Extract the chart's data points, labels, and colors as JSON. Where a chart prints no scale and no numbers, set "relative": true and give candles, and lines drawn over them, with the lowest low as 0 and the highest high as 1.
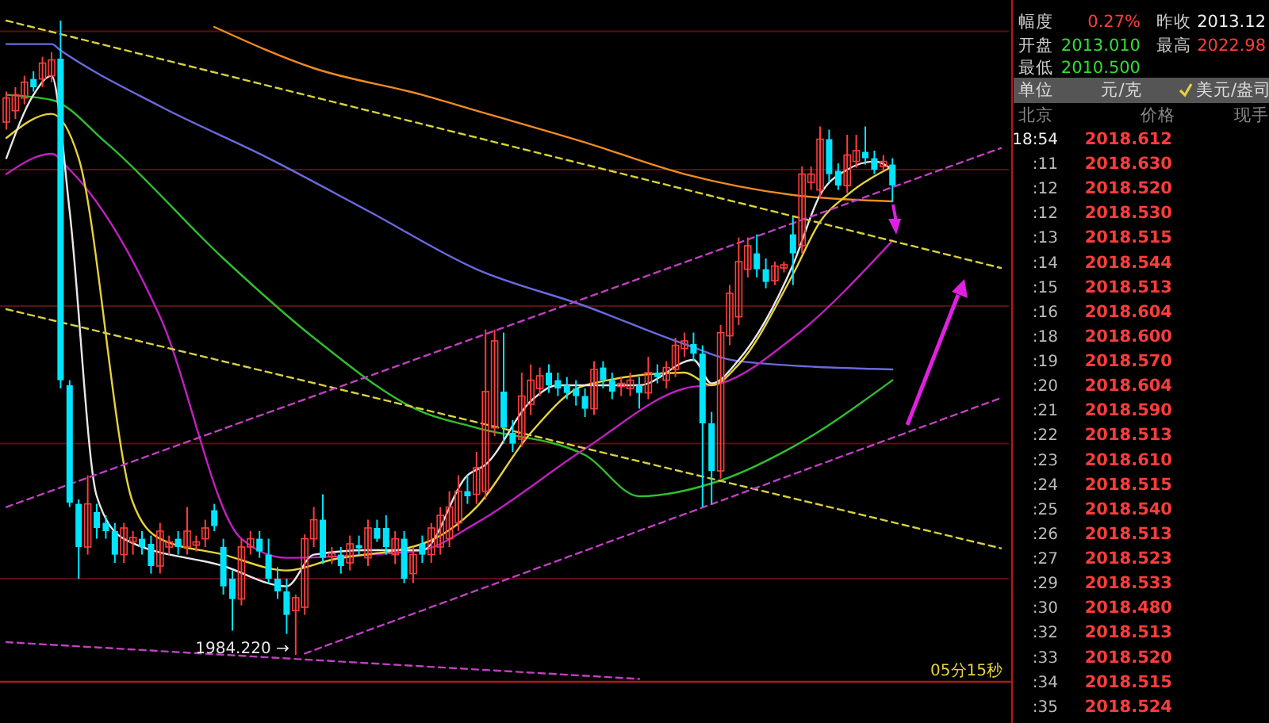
{
  "chart_data": [
    {
      "type": "candlestick",
      "relative": true,
      "ref_lines": [
        {
          "axis": "y",
          "value": 0.983,
          "color": "#5a0f0f"
        },
        {
          "axis": "y",
          "value": 0.765,
          "color": "#5a0f0f"
        },
        {
          "axis": "y",
          "value": 0.55,
          "color": "#5a0f0f"
        },
        {
          "axis": "y",
          "value": 0.333,
          "color": "#5a0f0f"
        },
        {
          "axis": "y",
          "value": 0.12,
          "color": "#5a0f0f"
        }
      ],
      "categories": [
        null,
        null,
        null,
        null,
        null,
        null,
        null,
        null,
        null,
        null,
        null,
        null,
        null,
        null,
        null,
        null,
        null,
        null,
        null,
        null,
        null,
        null,
        null,
        null,
        null,
        null,
        null,
        null,
        null,
        null,
        null,
        null,
        null,
        null,
        null,
        null,
        null,
        null,
        null,
        null,
        null,
        null,
        null,
        null,
        null,
        null,
        null,
        null,
        null,
        null,
        null,
        null,
        null,
        null,
        null,
        null,
        null,
        null,
        null,
        null,
        null,
        null,
        null,
        null,
        null,
        null,
        null,
        null,
        null,
        null,
        null,
        null,
        null,
        null,
        null,
        null,
        null,
        null,
        null,
        null,
        null,
        null,
        null,
        null,
        null,
        null,
        null,
        null,
        null,
        null,
        null,
        null,
        null,
        null,
        null,
        null,
        null,
        null,
        null,
        null,
        null,
        null,
        null,
        null,
        null,
        null,
        null,
        null,
        null,
        null,
        null
      ],
      "ohlc": [
        [
          0.84,
          0.888,
          0.828,
          0.878
        ],
        [
          0.858,
          0.895,
          0.845,
          0.883
        ],
        [
          0.878,
          0.913,
          0.868,
          0.903
        ],
        [
          0.908,
          0.92,
          0.888,
          0.895
        ],
        [
          0.908,
          0.943,
          0.895,
          0.933
        ],
        [
          0.913,
          0.95,
          0.903,
          0.938
        ],
        [
          0.94,
          1.0,
          0.42,
          0.433
        ],
        [
          0.425,
          0.433,
          0.233,
          0.24
        ],
        [
          0.238,
          0.245,
          0.12,
          0.17
        ],
        [
          0.17,
          0.283,
          0.158,
          0.238
        ],
        [
          0.225,
          0.238,
          0.183,
          0.2
        ],
        [
          0.208,
          0.22,
          0.183,
          0.195
        ],
        [
          0.195,
          0.208,
          0.145,
          0.158
        ],
        [
          0.158,
          0.208,
          0.145,
          0.2
        ],
        [
          0.178,
          0.195,
          0.158,
          0.185
        ],
        [
          0.183,
          0.195,
          0.158,
          0.17
        ],
        [
          0.175,
          0.188,
          0.128,
          0.14
        ],
        [
          0.14,
          0.208,
          0.128,
          0.195
        ],
        [
          0.17,
          0.188,
          0.158,
          0.178
        ],
        [
          0.183,
          0.195,
          0.158,
          0.17
        ],
        [
          0.17,
          0.233,
          0.158,
          0.195
        ],
        [
          0.173,
          0.188,
          0.163,
          0.178
        ],
        [
          0.183,
          0.213,
          0.17,
          0.2
        ],
        [
          0.228,
          0.238,
          0.195,
          0.203
        ],
        [
          0.17,
          0.183,
          0.095,
          0.108
        ],
        [
          0.12,
          0.133,
          0.038,
          0.088
        ],
        [
          0.088,
          0.183,
          0.078,
          0.17
        ],
        [
          0.17,
          0.195,
          0.158,
          0.183
        ],
        [
          0.183,
          0.195,
          0.153,
          0.163
        ],
        [
          0.158,
          0.183,
          0.113,
          0.12
        ],
        [
          0.12,
          0.138,
          0.088,
          0.1
        ],
        [
          0.1,
          0.12,
          0.033,
          0.063
        ],
        [
          0.07,
          0.095,
          0.0,
          0.09
        ],
        [
          0.075,
          0.19,
          0.063,
          0.183
        ],
        [
          0.183,
          0.233,
          0.17,
          0.213
        ],
        [
          0.213,
          0.253,
          0.143,
          0.153
        ],
        [
          0.155,
          0.17,
          0.143,
          0.16
        ],
        [
          0.158,
          0.17,
          0.128,
          0.14
        ],
        [
          0.145,
          0.188,
          0.133,
          0.175
        ],
        [
          0.173,
          0.188,
          0.158,
          0.168
        ],
        [
          0.153,
          0.213,
          0.14,
          0.2
        ],
        [
          0.2,
          0.213,
          0.178,
          0.183
        ],
        [
          0.2,
          0.22,
          0.158,
          0.17
        ],
        [
          0.158,
          0.195,
          0.143,
          0.183
        ],
        [
          0.183,
          0.195,
          0.113,
          0.12
        ],
        [
          0.128,
          0.17,
          0.113,
          0.158
        ],
        [
          0.175,
          0.188,
          0.145,
          0.158
        ],
        [
          0.158,
          0.208,
          0.145,
          0.2
        ],
        [
          0.17,
          0.233,
          0.158,
          0.22
        ],
        [
          0.183,
          0.258,
          0.17,
          0.233
        ],
        [
          0.208,
          0.283,
          0.195,
          0.258
        ],
        [
          0.258,
          0.283,
          0.238,
          0.25
        ],
        [
          0.253,
          0.32,
          0.238,
          0.295
        ],
        [
          0.258,
          0.513,
          0.245,
          0.415
        ],
        [
          0.358,
          0.513,
          0.345,
          0.495
        ],
        [
          0.415,
          0.508,
          0.333,
          0.358
        ],
        [
          0.35,
          0.37,
          0.32,
          0.333
        ],
        [
          0.34,
          0.445,
          0.328,
          0.408
        ],
        [
          0.395,
          0.458,
          0.378,
          0.433
        ],
        [
          0.42,
          0.453,
          0.408,
          0.44
        ],
        [
          0.445,
          0.458,
          0.413,
          0.425
        ],
        [
          0.433,
          0.445,
          0.408,
          0.42
        ],
        [
          0.425,
          0.438,
          0.403,
          0.413
        ],
        [
          0.42,
          0.433,
          0.393,
          0.408
        ],
        [
          0.408,
          0.42,
          0.375,
          0.388
        ],
        [
          0.388,
          0.463,
          0.378,
          0.45
        ],
        [
          0.453,
          0.463,
          0.42,
          0.433
        ],
        [
          0.433,
          0.445,
          0.403,
          0.415
        ],
        [
          0.423,
          0.438,
          0.408,
          0.428
        ],
        [
          0.42,
          0.445,
          0.408,
          0.433
        ],
        [
          0.425,
          0.438,
          0.388,
          0.413
        ],
        [
          0.413,
          0.47,
          0.403,
          0.445
        ],
        [
          0.445,
          0.458,
          0.428,
          0.438
        ],
        [
          0.433,
          0.463,
          0.42,
          0.453
        ],
        [
          0.45,
          0.5,
          0.438,
          0.488
        ],
        [
          0.483,
          0.508,
          0.47,
          0.495
        ],
        [
          0.49,
          0.508,
          0.463,
          0.475
        ],
        [
          0.475,
          0.488,
          0.233,
          0.365
        ],
        [
          0.365,
          0.383,
          0.238,
          0.29
        ],
        [
          0.29,
          0.52,
          0.278,
          0.508
        ],
        [
          0.503,
          0.583,
          0.488,
          0.57
        ],
        [
          0.533,
          0.658,
          0.52,
          0.62
        ],
        [
          0.608,
          0.658,
          0.595,
          0.645
        ],
        [
          0.633,
          0.663,
          0.595,
          0.608
        ],
        [
          0.608,
          0.625,
          0.578,
          0.588
        ],
        [
          0.59,
          0.62,
          0.583,
          0.613
        ],
        [
          0.61,
          0.62,
          0.603,
          0.615
        ],
        [
          0.663,
          0.69,
          0.583,
          0.633
        ],
        [
          0.645,
          0.77,
          0.633,
          0.758
        ],
        [
          0.745,
          0.77,
          0.733,
          0.758
        ],
        [
          0.733,
          0.833,
          0.72,
          0.813
        ],
        [
          0.813,
          0.828,
          0.745,
          0.758
        ],
        [
          0.763,
          0.775,
          0.733,
          0.74
        ],
        [
          0.74,
          0.82,
          0.728,
          0.788
        ],
        [
          0.778,
          0.82,
          0.768,
          0.795
        ],
        [
          0.793,
          0.833,
          0.773,
          0.783
        ],
        [
          0.783,
          0.795,
          0.758,
          0.765
        ],
        [
          0.77,
          0.788,
          0.763,
          0.778
        ],
        [
          0.773,
          0.783,
          0.715,
          0.74
        ],
        null,
        null,
        null,
        null,
        null,
        null,
        null,
        null,
        null,
        null,
        null,
        null
      ],
      "colors": [
        "#ff3c3c",
        "#ff3c3c",
        "#ff3c3c",
        "#00e5ff",
        "#ff3c3c",
        "#ff3c3c",
        "#00e5ff",
        "#00e5ff",
        "#00e5ff",
        "#ff3c3c",
        "#00e5ff",
        "#00e5ff",
        "#00e5ff",
        "#ff3c3c",
        "#ff3c3c",
        "#00e5ff",
        "#00e5ff",
        "#ff3c3c",
        "#ff3c3c",
        "#00e5ff",
        "#ff3c3c",
        "#ff3c3c",
        "#ff3c3c",
        "#00e5ff",
        "#00e5ff",
        "#00e5ff",
        "#ff3c3c",
        "#ff3c3c",
        "#00e5ff",
        "#00e5ff",
        "#00e5ff",
        "#00e5ff",
        "#ff3c3c",
        "#ff3c3c",
        "#ff3c3c",
        "#00e5ff",
        "#ff3c3c",
        "#00e5ff",
        "#ff3c3c",
        "#00e5ff",
        "#ff3c3c",
        "#00e5ff",
        "#00e5ff",
        "#ff3c3c",
        "#00e5ff",
        "#ff3c3c",
        "#00e5ff",
        "#ff3c3c",
        "#ff3c3c",
        "#ff3c3c",
        "#ff3c3c",
        "#00e5ff",
        "#ff3c3c",
        "#ff3c3c",
        "#ff3c3c",
        "#00e5ff",
        "#00e5ff",
        "#ff3c3c",
        "#ff3c3c",
        "#ff3c3c",
        "#00e5ff",
        "#00e5ff",
        "#00e5ff",
        "#00e5ff",
        "#00e5ff",
        "#ff3c3c",
        "#00e5ff",
        "#00e5ff",
        "#ff3c3c",
        "#ff3c3c",
        "#00e5ff",
        "#ff3c3c",
        "#00e5ff",
        "#ff3c3c",
        "#ff3c3c",
        "#ff3c3c",
        "#00e5ff",
        "#00e5ff",
        "#00e5ff",
        "#ff3c3c",
        "#ff3c3c",
        "#ff3c3c",
        "#ff3c3c",
        "#00e5ff",
        "#00e5ff",
        "#ff3c3c",
        "#ff3c3c",
        "#00e5ff",
        "#ff3c3c",
        "#ff3c3c",
        "#ff3c3c",
        "#00e5ff",
        "#00e5ff",
        "#ff3c3c",
        "#ff3c3c",
        "#00e5ff",
        "#00e5ff",
        "#ff3c3c",
        "#00e5ff",
        null,
        null,
        null,
        null,
        null,
        null,
        null,
        null,
        null,
        null,
        null,
        null
      ],
      "series": [
        {
          "type": "line",
          "color": "#f08a24",
          "values": [
            null,
            null,
            null,
            null,
            null,
            null,
            null,
            null,
            null,
            null,
            null,
            null,
            null,
            null,
            null,
            null,
            null,
            null,
            null,
            null,
            null,
            null,
            null,
            0.99,
            null,
            null,
            null,
            null,
            null,
            null,
            null,
            null,
            null,
            null,
            0.925,
            null,
            null,
            null,
            null,
            null,
            null,
            null,
            null,
            null,
            null,
            null,
            0.883,
            null,
            null,
            null,
            null,
            null,
            0.858,
            null,
            null,
            null,
            null,
            null,
            null,
            null,
            null,
            null,
            null,
            null,
            0.808,
            null,
            null,
            null,
            null,
            null,
            null,
            null,
            null,
            null,
            null,
            0.758,
            null,
            null,
            null,
            null,
            null,
            null,
            null,
            null,
            null,
            null,
            null,
            0.725,
            null,
            null,
            null,
            null,
            null,
            null,
            null,
            null,
            null,
            null,
            0.715,
            null,
            null,
            null,
            null,
            null,
            null,
            null,
            null,
            null,
            null,
            null,
            null
          ]
        },
        {
          "type": "line",
          "color": "#6a6adf",
          "values": [
            0.963,
            null,
            null,
            null,
            null,
            0.963,
            0.953,
            null,
            null,
            null,
            null,
            null,
            null,
            null,
            null,
            null,
            null,
            0.865,
            null,
            null,
            null,
            null,
            null,
            null,
            null,
            null,
            null,
            null,
            null,
            0.783,
            null,
            null,
            null,
            null,
            null,
            null,
            null,
            null,
            null,
            null,
            0.7,
            null,
            null,
            null,
            null,
            null,
            null,
            null,
            null,
            null,
            null,
            null,
            0.608,
            null,
            null,
            null,
            null,
            null,
            null,
            null,
            null,
            null,
            null,
            null,
            0.55,
            null,
            null,
            null,
            null,
            null,
            null,
            null,
            null,
            null,
            null,
            0.49,
            null,
            null,
            null,
            null,
            null,
            0.463,
            null,
            null,
            null,
            null,
            null,
            null,
            null,
            null,
            null,
            null,
            null,
            null,
            null,
            null,
            null,
            null,
            0.45,
            null,
            null,
            null,
            null,
            null,
            null,
            null,
            null,
            null,
            null,
            null,
            null
          ]
        },
        {
          "type": "line",
          "color": "#2fbf2f",
          "values": [
            0.883,
            null,
            null,
            null,
            null,
            0.875,
            null,
            null,
            null,
            null,
            null,
            0.808,
            null,
            null,
            null,
            null,
            null,
            null,
            null,
            null,
            null,
            null,
            null,
            null,
            0.625,
            null,
            null,
            null,
            null,
            null,
            null,
            null,
            null,
            null,
            0.5,
            null,
            null,
            null,
            null,
            null,
            null,
            null,
            null,
            null,
            null,
            null,
            0.383,
            null,
            null,
            null,
            null,
            null,
            0.358,
            null,
            null,
            null,
            null,
            null,
            null,
            null,
            null,
            null,
            null,
            null,
            0.315,
            null,
            null,
            null,
            null,
            null,
            0.25,
            null,
            null,
            null,
            null,
            null,
            null,
            null,
            null,
            0.275,
            null,
            null,
            null,
            null,
            null,
            null,
            null,
            0.328,
            null,
            null,
            null,
            null,
            null,
            null,
            null,
            null,
            null,
            null,
            0.433,
            null,
            null,
            null,
            null,
            null,
            null,
            null,
            null,
            null,
            null,
            null,
            null
          ]
        },
        {
          "type": "line",
          "color": "#c020c0",
          "values": [
            0.758,
            null,
            null,
            null,
            null,
            0.79,
            null,
            0.765,
            null,
            null,
            null,
            null,
            null,
            null,
            null,
            null,
            null,
            0.533,
            null,
            null,
            null,
            null,
            null,
            null,
            null,
            null,
            0.183,
            null,
            null,
            null,
            null,
            0.153,
            null,
            null,
            null,
            null,
            null,
            null,
            null,
            null,
            0.158,
            null,
            null,
            null,
            null,
            null,
            0.165,
            null,
            null,
            null,
            null,
            null,
            0.208,
            null,
            null,
            null,
            null,
            null,
            null,
            null,
            null,
            null,
            null,
            null,
            0.325,
            null,
            null,
            null,
            null,
            null,
            null,
            null,
            null,
            null,
            null,
            0.42,
            null,
            null,
            null,
            0.428,
            null,
            null,
            null,
            null,
            null,
            null,
            null,
            0.5,
            null,
            null,
            null,
            null,
            null,
            null,
            null,
            null,
            null,
            null,
            0.653,
            null,
            null,
            null,
            null,
            null,
            null,
            null,
            null,
            null,
            null,
            null,
            null
          ]
        },
        {
          "type": "line",
          "color": "#e6d23c",
          "values": [
            0.815,
            null,
            null,
            null,
            null,
            0.853,
            null,
            null,
            0.783,
            null,
            null,
            null,
            null,
            null,
            0.24,
            null,
            null,
            0.183,
            null,
            null,
            null,
            null,
            null,
            null,
            0.158,
            null,
            null,
            null,
            null,
            null,
            null,
            0.133,
            null,
            null,
            null,
            null,
            0.15,
            null,
            null,
            null,
            null,
            null,
            null,
            null,
            null,
            null,
            0.175,
            null,
            null,
            null,
            null,
            null,
            0.233,
            null,
            null,
            null,
            null,
            null,
            0.35,
            null,
            null,
            null,
            null,
            null,
            0.425,
            null,
            null,
            null,
            null,
            null,
            null,
            null,
            null,
            null,
            null,
            0.445,
            null,
            null,
            0.425,
            null,
            null,
            0.458,
            null,
            null,
            null,
            null,
            null,
            0.6,
            null,
            null,
            0.683,
            null,
            null,
            0.725,
            null,
            null,
            null,
            null,
            0.77,
            null,
            null,
            null,
            null,
            null,
            null,
            null,
            null,
            null,
            null,
            null,
            null
          ]
        },
        {
          "type": "line",
          "color": "#e8e8e8",
          "values": [
            0.783,
            null,
            null,
            0.883,
            null,
            0.913,
            null,
            0.7,
            null,
            null,
            0.25,
            null,
            null,
            0.183,
            null,
            null,
            null,
            null,
            null,
            null,
            null,
            null,
            null,
            null,
            0.14,
            null,
            null,
            null,
            null,
            null,
            null,
            0.108,
            null,
            null,
            0.158,
            null,
            null,
            null,
            null,
            null,
            0.165,
            null,
            null,
            null,
            null,
            null,
            0.165,
            null,
            null,
            null,
            null,
            0.283,
            null,
            0.3,
            null,
            null,
            null,
            null,
            0.4,
            null,
            null,
            0.425,
            null,
            null,
            null,
            null,
            null,
            null,
            null,
            null,
            0.425,
            null,
            null,
            null,
            null,
            null,
            0.465,
            null,
            0.428,
            null,
            null,
            0.465,
            null,
            null,
            null,
            null,
            null,
            0.615,
            null,
            null,
            0.725,
            null,
            null,
            0.765,
            null,
            null,
            0.778,
            null,
            0.765,
            null,
            null,
            null,
            null,
            null,
            null,
            null,
            null,
            null,
            null,
            null,
            null
          ]
        },
        {
          "type": "line",
          "color": "#d8d040",
          "line_style": "dashed",
          "values": [
            1.0,
            null,
            null,
            null,
            null,
            null,
            null,
            null,
            null,
            null,
            null,
            null,
            null,
            null,
            null,
            null,
            null,
            null,
            null,
            null,
            null,
            null,
            null,
            null,
            null,
            null,
            null,
            null,
            null,
            null,
            null,
            null,
            null,
            null,
            null,
            null,
            null,
            null,
            null,
            null,
            null,
            null,
            null,
            null,
            null,
            null,
            null,
            null,
            null,
            null,
            null,
            null,
            null,
            null,
            null,
            null,
            null,
            null,
            null,
            null,
            null,
            null,
            null,
            null,
            null,
            null,
            null,
            null,
            null,
            null,
            null,
            null,
            null,
            null,
            null,
            null,
            null,
            null,
            null,
            null,
            null,
            null,
            null,
            null,
            null,
            null,
            null,
            null,
            null,
            null,
            null,
            null,
            null,
            null,
            null,
            null,
            null,
            null,
            null,
            null,
            null,
            null,
            null,
            null,
            null,
            null,
            null,
            null,
            null,
            null,
            0.61
          ]
        },
        {
          "type": "line",
          "color": "#d8d040",
          "line_style": "dashed",
          "values": [
            0.545,
            null,
            null,
            null,
            null,
            null,
            null,
            null,
            null,
            null,
            null,
            null,
            null,
            null,
            null,
            null,
            null,
            null,
            null,
            null,
            null,
            null,
            null,
            null,
            null,
            null,
            null,
            null,
            null,
            null,
            null,
            null,
            null,
            null,
            null,
            null,
            null,
            null,
            null,
            null,
            null,
            null,
            null,
            null,
            null,
            null,
            null,
            null,
            null,
            null,
            null,
            null,
            null,
            null,
            null,
            null,
            null,
            null,
            null,
            null,
            null,
            null,
            null,
            null,
            null,
            null,
            null,
            null,
            null,
            null,
            null,
            null,
            null,
            null,
            null,
            null,
            null,
            null,
            null,
            null,
            null,
            null,
            null,
            null,
            null,
            null,
            null,
            null,
            null,
            null,
            null,
            null,
            null,
            null,
            null,
            null,
            null,
            null,
            null,
            null,
            null,
            null,
            null,
            null,
            null,
            null,
            null,
            null,
            null,
            null,
            0.168
          ]
        },
        {
          "type": "line",
          "color": "#c040c0",
          "line_style": "dashed",
          "values": [
            0.233,
            null,
            null,
            null,
            null,
            null,
            null,
            null,
            null,
            null,
            null,
            null,
            null,
            null,
            null,
            null,
            null,
            null,
            null,
            null,
            null,
            null,
            null,
            null,
            null,
            null,
            null,
            null,
            null,
            null,
            null,
            null,
            null,
            null,
            null,
            null,
            null,
            null,
            null,
            null,
            null,
            null,
            null,
            null,
            null,
            null,
            null,
            null,
            null,
            null,
            null,
            null,
            null,
            null,
            null,
            null,
            null,
            null,
            null,
            null,
            null,
            null,
            null,
            null,
            null,
            null,
            null,
            null,
            null,
            null,
            null,
            null,
            null,
            null,
            null,
            null,
            null,
            null,
            null,
            null,
            null,
            null,
            null,
            null,
            null,
            null,
            null,
            null,
            null,
            null,
            null,
            null,
            null,
            null,
            null,
            null,
            null,
            null,
            null,
            null,
            null,
            null,
            null,
            null,
            null,
            null,
            null,
            null,
            null,
            null,
            0.799
          ]
        },
        {
          "type": "line",
          "color": "#c040c0",
          "line_style": "dashed",
          "values": [
            null,
            null,
            null,
            null,
            null,
            null,
            null,
            null,
            null,
            null,
            null,
            null,
            null,
            null,
            null,
            null,
            null,
            null,
            null,
            null,
            null,
            null,
            null,
            null,
            null,
            null,
            null,
            null,
            null,
            null,
            null,
            null,
            null,
            0.002,
            null,
            null,
            null,
            null,
            null,
            null,
            null,
            null,
            null,
            null,
            null,
            null,
            null,
            null,
            null,
            null,
            null,
            null,
            null,
            null,
            null,
            null,
            null,
            null,
            null,
            null,
            null,
            null,
            null,
            null,
            null,
            null,
            null,
            null,
            null,
            null,
            null,
            null,
            null,
            null,
            null,
            null,
            null,
            null,
            null,
            null,
            null,
            null,
            null,
            null,
            null,
            null,
            null,
            null,
            null,
            null,
            null,
            null,
            null,
            null,
            null,
            null,
            null,
            null,
            null,
            null,
            null,
            null,
            null,
            null,
            null,
            null,
            null,
            null,
            null,
            null,
            0.405
          ]
        },
        {
          "type": "line",
          "color": "#c040c0",
          "line_style": "dashed",
          "values": [
            0.02,
            null,
            null,
            null,
            null,
            null,
            null,
            null,
            null,
            null,
            null,
            null,
            null,
            null,
            null,
            null,
            null,
            null,
            null,
            null,
            null,
            null,
            null,
            null,
            null,
            null,
            null,
            null,
            null,
            null,
            null,
            null,
            null,
            null,
            null,
            null,
            null,
            null,
            null,
            null,
            null,
            null,
            null,
            null,
            null,
            null,
            null,
            null,
            null,
            null,
            null,
            null,
            null,
            null,
            null,
            null,
            null,
            null,
            null,
            null,
            null,
            null,
            null,
            null,
            null,
            null,
            null,
            null,
            null,
            null,
            -0.038,
            null,
            null,
            null,
            null,
            null,
            null,
            null,
            null,
            null,
            null,
            null,
            null,
            null,
            null,
            null,
            null,
            null,
            null,
            null,
            null,
            null,
            null,
            null,
            null,
            null,
            null,
            null,
            null,
            null,
            null,
            null,
            null,
            null,
            null,
            null,
            null,
            null,
            null,
            null,
            null
          ]
        }
      ],
      "annotations": [
        {
          "text": "1984.220 →",
          "y": 0
        },
        "05分15秒"
      ]
    },
    {
      "type": "other",
      "value_labels": [
        "2018.612",
        "2018.630",
        "2018.520",
        "2018.530",
        "2018.515",
        "2018.544",
        "2018.513",
        "2018.604",
        "2018.600",
        "2018.570",
        "2018.604",
        "2018.590",
        "2018.513",
        "2018.610",
        "2018.515",
        "2018.540",
        "2018.513",
        "2018.523",
        "2018.533",
        "2018.480",
        "2018.513",
        "2018.520",
        "2018.515",
        "2018.524"
      ],
      "categories": [
        "18:54",
        ":11",
        ":12",
        ":12",
        ":13",
        ":14",
        ":15",
        ":16",
        ":18",
        ":19",
        ":20",
        ":21",
        ":22",
        ":23",
        ":24",
        ":25",
        ":26",
        ":27",
        ":29",
        ":30",
        ":32",
        ":33",
        ":34",
        ":35"
      ],
      "annotations": [
        "幅度",
        "0.27%",
        "昨收",
        "2013.12",
        "开盘",
        "2013.010",
        "最高",
        "2022.98",
        "最低",
        "2010.500",
        "单位",
        "元/克",
        "美元/盎司",
        "北京",
        "价格",
        "现手"
      ]
    }
  ]
}
